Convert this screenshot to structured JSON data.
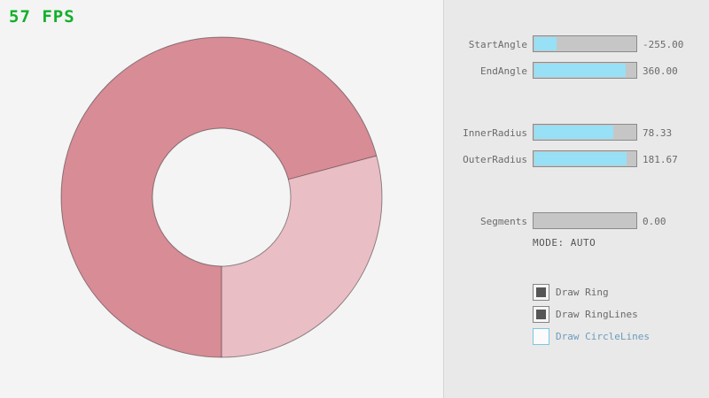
{
  "fps_label": "57 FPS",
  "ring": {
    "start_angle": -255.0,
    "end_angle": 360.0,
    "inner_radius": 78.33,
    "outer_radius": 181.67,
    "segments": 0.0,
    "mode": "AUTO"
  },
  "panel": {
    "sliders": [
      {
        "label": "StartAngle",
        "value": "-255.00",
        "fill_pct": 21.7
      },
      {
        "label": "EndAngle",
        "value": "360.00",
        "fill_pct": 90.0
      },
      {
        "label": "InnerRadius",
        "value": "78.33",
        "fill_pct": 78.3
      },
      {
        "label": "OuterRadius",
        "value": "181.67",
        "fill_pct": 90.8
      },
      {
        "label": "Segments",
        "value": "0.00",
        "fill_pct": 0.0
      }
    ],
    "mode_text": "MODE: AUTO",
    "checkboxes": [
      {
        "label": "Draw Ring",
        "checked": true
      },
      {
        "label": "Draw RingLines",
        "checked": true
      },
      {
        "label": "Draw CircleLines",
        "checked": false
      }
    ]
  },
  "colors": {
    "fps_green": "#12b029",
    "ring_dark_pink": "#d78c96",
    "ring_light_pink": "#e9bec5",
    "ring_outline": "rgba(0,0,0,0.40)",
    "slider_fill_cyan": "#97e0f5",
    "accent_blue": "#6c9bbc",
    "panel_bg": "#e9e9e9",
    "canvas_bg": "#f4f4f4"
  }
}
